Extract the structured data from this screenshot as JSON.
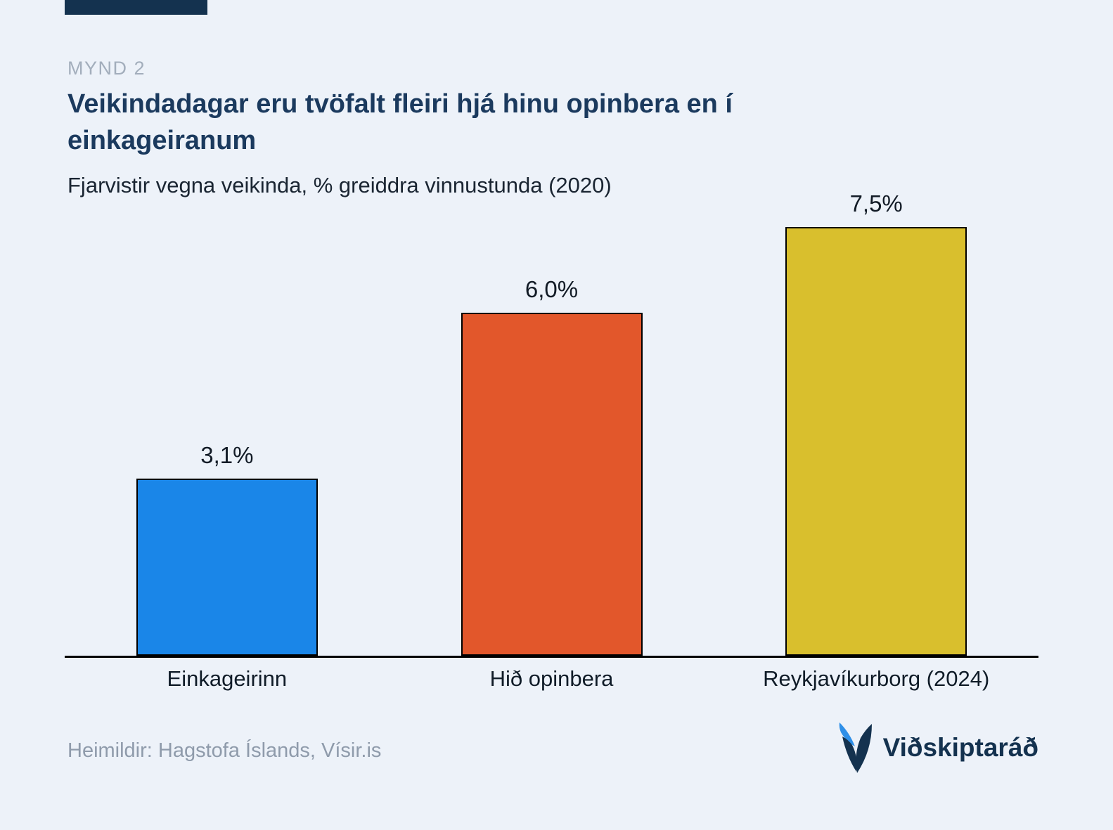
{
  "meta": {
    "figure_label": "MYND 2"
  },
  "header": {
    "title": "Veikindadagar eru tvöfalt fleiri hjá hinu opinbera en í einkageiranum",
    "subtitle": "Fjarvistir vegna veikinda, % greiddra vinnustunda (2020)"
  },
  "footer": {
    "sources": "Heimildir: Hagstofa Íslands, Vísir.is",
    "brand": "Viðskiptaráð"
  },
  "colors": {
    "background": "#edf2f9",
    "navy": "#14324f",
    "title_navy": "#1b3a5e",
    "eyebrow_gray": "#a3aebc",
    "sources_gray": "#8f9bab",
    "axis_black": "#000000"
  },
  "chart_data": {
    "type": "bar",
    "title": "Veikindadagar eru tvöfalt fleiri hjá hinu opinbera en í einkageiranum",
    "subtitle": "Fjarvistir vegna veikinda, % greiddra vinnustunda (2020)",
    "categories": [
      "Einkageirinn",
      "Hið opinbera",
      "Reykjavíkurborg (2024)"
    ],
    "values": [
      3.1,
      6.0,
      7.5
    ],
    "value_labels": [
      "3,1%",
      "6,0%",
      "7,5%"
    ],
    "bar_colors": [
      "#1a86e8",
      "#e2572b",
      "#d9bf2d"
    ],
    "xlabel": "",
    "ylabel": "",
    "ylim": [
      0,
      7.5
    ],
    "grid": false,
    "legend": false
  }
}
